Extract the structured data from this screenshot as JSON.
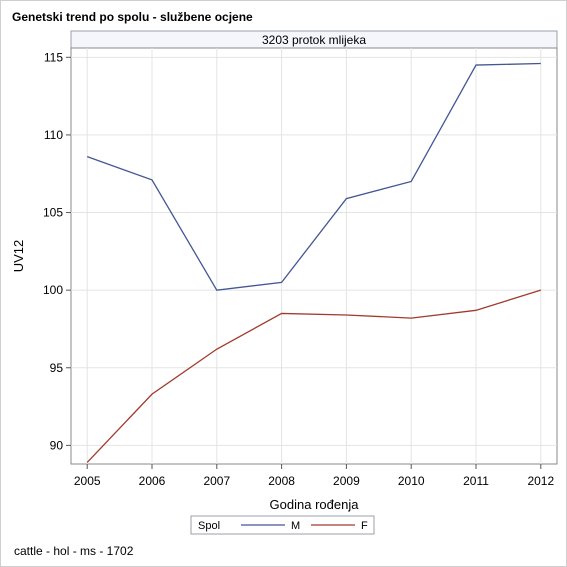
{
  "title": "Genetski trend po spolu - službene ocjene",
  "footer": "cattle - hol - ms - 1702",
  "chart_data": {
    "type": "line",
    "panel_label": "3203 protok mlijeka",
    "xlabel": "Godina rođenja",
    "ylabel": "UV12",
    "x": [
      2005,
      2006,
      2007,
      2008,
      2009,
      2010,
      2011,
      2012
    ],
    "xlim": [
      2004.75,
      2012.25
    ],
    "ylim": [
      88.8,
      115.6
    ],
    "yticks": [
      90,
      95,
      100,
      105,
      110,
      115
    ],
    "grid": true,
    "legend": {
      "title": "Spol",
      "placement": "bottom"
    },
    "series": [
      {
        "name": "M",
        "color": "#445694",
        "values": [
          108.6,
          107.1,
          100.0,
          100.5,
          105.9,
          107.0,
          114.5,
          114.6
        ]
      },
      {
        "name": "F",
        "color": "#a23a2e",
        "values": [
          88.9,
          93.3,
          96.2,
          98.5,
          98.4,
          98.2,
          98.7,
          100.0
        ]
      }
    ]
  }
}
